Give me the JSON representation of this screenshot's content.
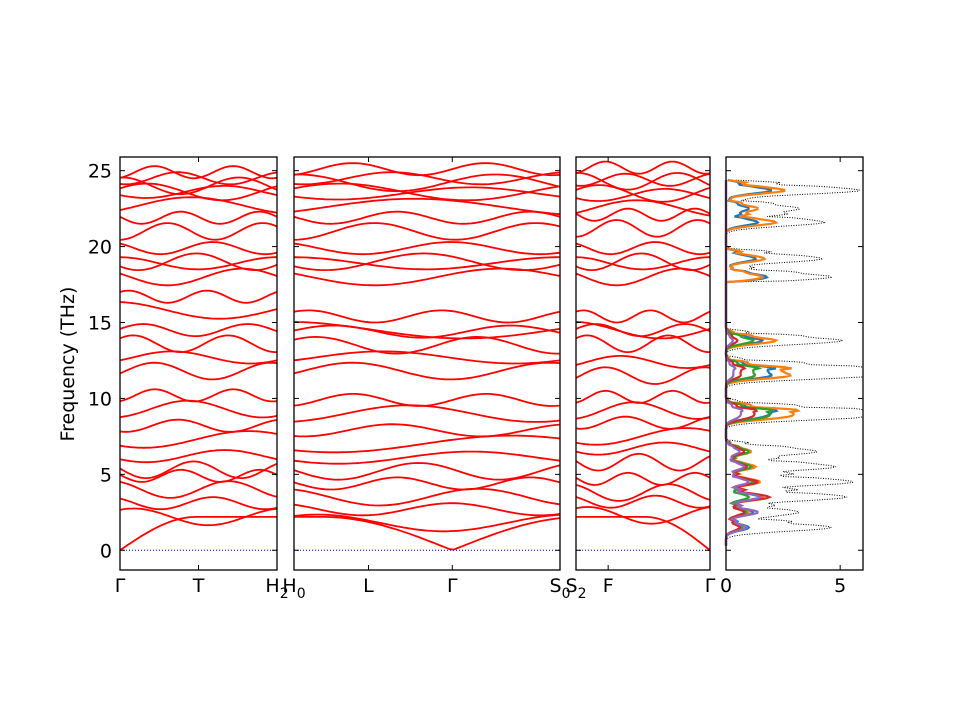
{
  "chart_data": [
    {
      "type": "line",
      "panel": "band-path-1",
      "xlabel": "",
      "ylabel": "Frequency (THz)",
      "ylim": [
        -1.3,
        25.9
      ],
      "yticks": [
        0,
        5,
        10,
        15,
        20,
        25
      ],
      "xtick_labels": [
        "Γ",
        "T",
        "H2"
      ],
      "xtick_positions": [
        0,
        0.5,
        1
      ],
      "y_at_ticks": [
        0,
        2.2,
        4.0,
        5.3,
        7.3,
        9.3,
        11.8,
        13.6,
        15.8,
        18.0,
        19.0,
        21.0,
        22.7,
        23.6,
        24.0
      ],
      "series": [
        {
          "values": [
            0,
            2.2,
            4.0,
            5.3,
            7.3,
            9.3,
            11.8,
            13.6,
            15.8,
            18.0,
            19.0,
            21.0,
            22.7,
            23.6,
            24.0
          ]
        }
      ],
      "zero_line_color": "#0000cc",
      "band_color": "#ff0000"
    },
    {
      "type": "line",
      "panel": "band-path-2",
      "xtick_labels": [
        "H0",
        "L",
        "Γ",
        "S0"
      ],
      "xtick_positions": [
        0,
        0.28,
        0.595,
        1
      ],
      "ylim": [
        -1.3,
        25.9
      ],
      "y_at_ticks": [
        0,
        1.8,
        3.5,
        5.2,
        7.0,
        9.0,
        11.8,
        13.5,
        14.5,
        18.0,
        19.0,
        21.0,
        22.6,
        23.6,
        24.2
      ],
      "series": [
        {
          "values": [
            0,
            1.8,
            3.5,
            5.2,
            7.0,
            9.0,
            11.8,
            13.5,
            14.5,
            18.0,
            19.0,
            21.0,
            22.6,
            23.6,
            24.2
          ]
        }
      ],
      "band_color": "#ff0000"
    },
    {
      "type": "line",
      "panel": "band-path-3",
      "xtick_labels": [
        "S2",
        "F",
        "Γ"
      ],
      "xtick_positions": [
        0,
        0.24,
        1
      ],
      "ylim": [
        -1.3,
        25.9
      ],
      "y_at_ticks": [
        0,
        2.3,
        3.8,
        5.8,
        7.5,
        9.2,
        11.5,
        13.6,
        14.5,
        18.0,
        19.0,
        21.2,
        22.5,
        23.5,
        24.3
      ],
      "series": [
        {
          "values": [
            0,
            2.3,
            3.8,
            5.8,
            7.5,
            9.2,
            11.5,
            13.6,
            14.5,
            18.0,
            19.0,
            21.2,
            22.5,
            23.5,
            24.3
          ]
        }
      ],
      "band_color": "#ff0000"
    },
    {
      "type": "line",
      "panel": "dos",
      "xlim": [
        0,
        6
      ],
      "xticks": [
        0,
        5
      ],
      "ylim": [
        -1.3,
        25.9
      ],
      "total_dos_style": "dotted",
      "total_dos_color": "#000000",
      "partial_colors": [
        "#1f77b4",
        "#ff7f0e",
        "#2ca02c",
        "#d62728",
        "#9467bd"
      ],
      "peak_frequencies": [
        1.5,
        2.5,
        3.5,
        4.5,
        5.5,
        6.5,
        8.8,
        9.2,
        11.5,
        12.0,
        13.8,
        18.0,
        19.2,
        21.6,
        22.5,
        23.7
      ],
      "total_peaks": [
        4.6,
        3.2,
        5.3,
        5.6,
        4.8,
        4.0,
        5.4,
        4.6,
        6.0,
        5.4,
        5.1,
        4.6,
        4.2,
        4.3,
        3.2,
        5.9
      ],
      "partial_peaks": [
        [
          1.0,
          1.2,
          1.5,
          1.3,
          1.2,
          1.0,
          1.4,
          1.6,
          1.9,
          1.5,
          1.6,
          1.8,
          1.3,
          1.4,
          1.0,
          2.0
        ],
        [
          0.8,
          1.0,
          1.6,
          1.5,
          1.3,
          1.1,
          2.4,
          2.1,
          2.7,
          1.9,
          2.2,
          1.6,
          1.7,
          2.2,
          1.4,
          2.6
        ],
        [
          0.7,
          0.9,
          1.0,
          1.2,
          1.1,
          1.0,
          1.6,
          1.3,
          1.2,
          1.0,
          1.2,
          0,
          0,
          0,
          0,
          0
        ],
        [
          0.6,
          0.8,
          1.9,
          1.4,
          0.9,
          0.8,
          1.0,
          0.9,
          0.6,
          0.6,
          0.5,
          0,
          0,
          0,
          0,
          0
        ],
        [
          0.9,
          1.4,
          1.5,
          1.0,
          0.8,
          0.6,
          0.5,
          0.5,
          0.3,
          0.3,
          0.3,
          0,
          0,
          0,
          0,
          0
        ]
      ]
    }
  ]
}
